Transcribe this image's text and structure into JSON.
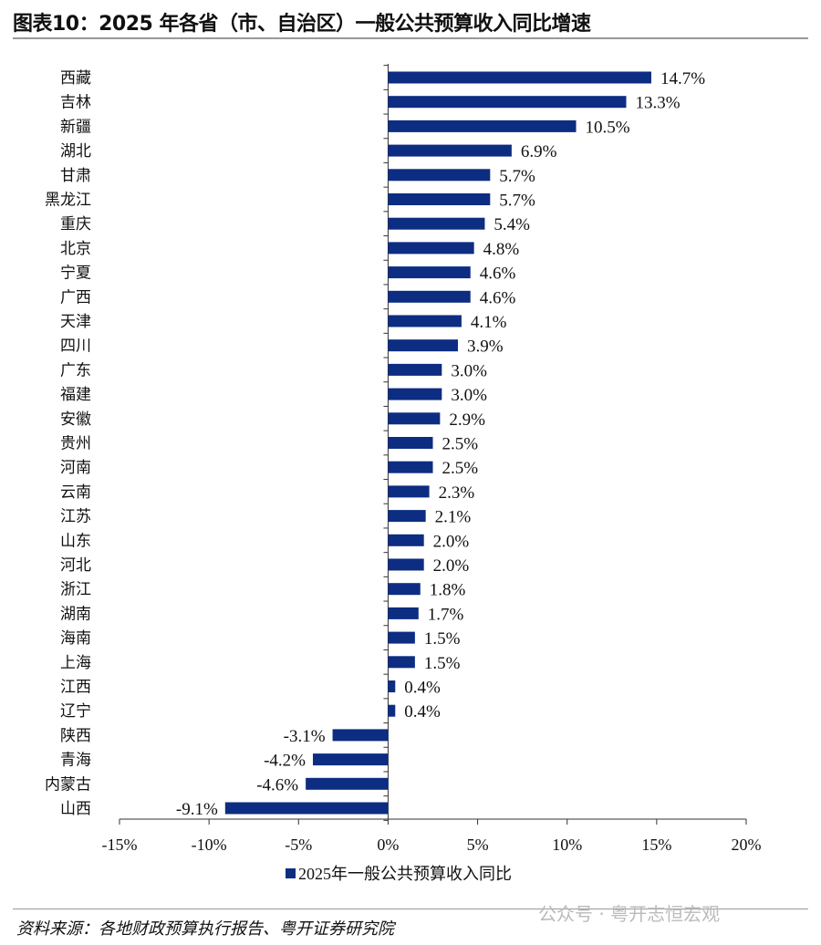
{
  "title": "图表10：2025 年各省（市、自治区）一般公共预算收入同比增速",
  "source": "资料来源：各地财政预算执行报告、粤开证券研究院",
  "watermark": "公众号 · 粤开志恒宏观",
  "chart_data": {
    "type": "bar",
    "orientation": "horizontal",
    "categories": [
      "西藏",
      "吉林",
      "新疆",
      "湖北",
      "甘肃",
      "黑龙江",
      "重庆",
      "北京",
      "宁夏",
      "广西",
      "天津",
      "四川",
      "广东",
      "福建",
      "安徽",
      "贵州",
      "河南",
      "云南",
      "江苏",
      "山东",
      "河北",
      "浙江",
      "湖南",
      "海南",
      "上海",
      "江西",
      "辽宁",
      "陕西",
      "青海",
      "内蒙古",
      "山西"
    ],
    "series": [
      {
        "name": "2025年一般公共预算收入同比",
        "values": [
          14.7,
          13.3,
          10.5,
          6.9,
          5.7,
          5.7,
          5.4,
          4.8,
          4.6,
          4.6,
          4.1,
          3.9,
          3.0,
          3.0,
          2.9,
          2.5,
          2.5,
          2.3,
          2.1,
          2.0,
          2.0,
          1.8,
          1.7,
          1.5,
          1.5,
          0.4,
          0.4,
          -3.1,
          -4.2,
          -4.6,
          -9.1
        ],
        "labels": [
          "14.7%",
          "13.3%",
          "10.5%",
          "6.9%",
          "5.7%",
          "5.7%",
          "5.4%",
          "4.8%",
          "4.6%",
          "4.6%",
          "4.1%",
          "3.9%",
          "3.0%",
          "3.0%",
          "2.9%",
          "2.5%",
          "2.5%",
          "2.3%",
          "2.1%",
          "2.0%",
          "2.0%",
          "1.8%",
          "1.7%",
          "1.5%",
          "1.5%",
          "0.4%",
          "0.4%",
          "-3.1%",
          "-4.2%",
          "-4.6%",
          "-9.1%"
        ]
      }
    ],
    "xlim": [
      -15,
      20
    ],
    "xticks": [
      -15,
      -10,
      -5,
      0,
      5,
      10,
      15,
      20
    ],
    "xtick_labels": [
      "-15%",
      "-10%",
      "-5%",
      "0%",
      "5%",
      "10%",
      "15%",
      "20%"
    ],
    "grid": false,
    "legend_position": "bottom",
    "bar_color": "#0d2d82"
  }
}
